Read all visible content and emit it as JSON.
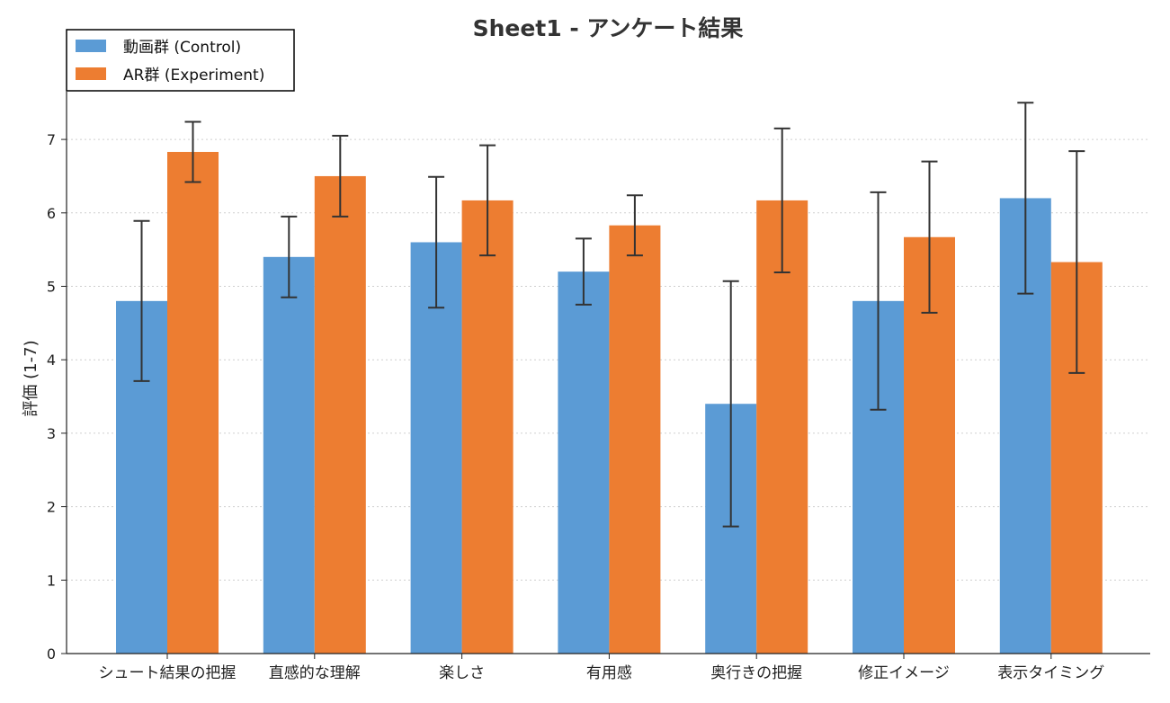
{
  "chart_data": {
    "type": "bar",
    "title": "Sheet1 - アンケート結果",
    "xlabel": "",
    "ylabel": "評価 (1-7)",
    "ylim": [
      0,
      7.5
    ],
    "yticks": [
      "0",
      "1",
      "2",
      "3",
      "4",
      "5",
      "6",
      "7"
    ],
    "grid": "horizontal dotted",
    "legend_position": "top-left",
    "categories": [
      "シュート結果の把握",
      "直感的な理解",
      "楽しさ",
      "有用感",
      "奥行きの把握",
      "修正イメージ",
      "表示タイミング"
    ],
    "series": [
      {
        "name": "動画群 (Control)",
        "color": "#5b9bd5",
        "values": [
          4.8,
          5.4,
          5.6,
          5.2,
          3.4,
          4.8,
          6.2
        ],
        "error": [
          1.09,
          0.55,
          0.89,
          0.45,
          1.67,
          1.48,
          1.3
        ]
      },
      {
        "name": "AR群 (Experiment)",
        "color": "#ed7d31",
        "values": [
          6.83,
          6.5,
          6.17,
          5.83,
          6.17,
          5.67,
          5.33
        ],
        "error": [
          0.41,
          0.55,
          0.75,
          0.41,
          0.98,
          1.03,
          1.51
        ]
      }
    ]
  }
}
